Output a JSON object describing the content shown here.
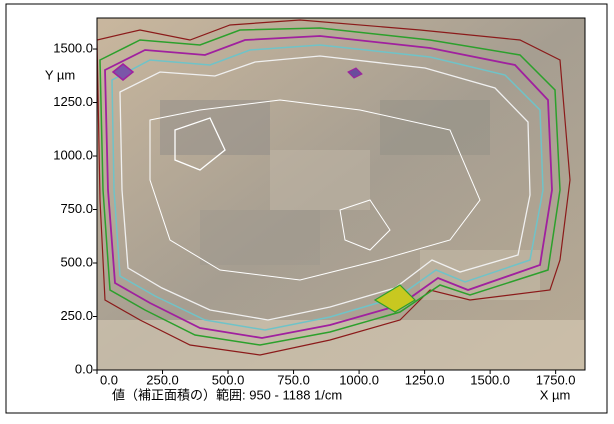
{
  "chart_data": {
    "type": "contour",
    "xlabel": "X µm",
    "ylabel": "Y µm",
    "caption": "値（補正面積の）範囲: 950 - 1188 1/cm",
    "xlim": [
      0,
      1862
    ],
    "ylim": [
      0,
      1645
    ],
    "xticks": [
      {
        "value": 0,
        "label": "0.0"
      },
      {
        "value": 250,
        "label": "250.0"
      },
      {
        "value": 500,
        "label": "500.0"
      },
      {
        "value": 750,
        "label": "750.0"
      },
      {
        "value": 1000,
        "label": "1000.0"
      },
      {
        "value": 1250,
        "label": "1250.0"
      },
      {
        "value": 1500,
        "label": "1500.0"
      },
      {
        "value": 1750,
        "label": "1750.0"
      }
    ],
    "yticks": [
      {
        "value": 0,
        "label": "0.0"
      },
      {
        "value": 250,
        "label": "250.0"
      },
      {
        "value": 500,
        "label": "500.0"
      },
      {
        "value": 750,
        "label": "750.0"
      },
      {
        "value": 1000,
        "label": "1000.0"
      },
      {
        "value": 1250,
        "label": "1250.0"
      },
      {
        "value": 1500,
        "label": "1500.0"
      }
    ]
  }
}
